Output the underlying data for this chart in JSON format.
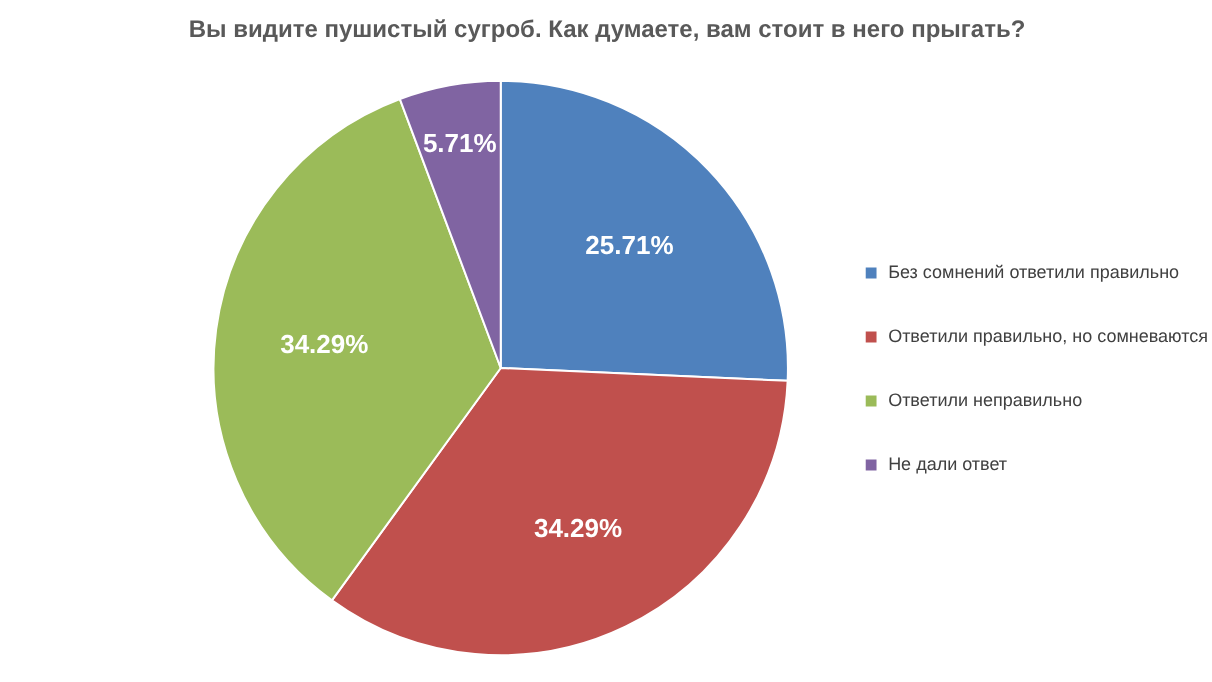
{
  "chart_data": {
    "type": "pie",
    "title": "Вы видите пушистый сугроб. Как думаете, вам стоит в него прыгать?",
    "categories": [
      "Без сомнений ответили правильно",
      "Ответили правильно, но сомневаются",
      "Ответили неправильно",
      "Не дали ответ"
    ],
    "values": [
      25.71,
      34.29,
      34.29,
      5.71
    ],
    "colors": [
      "#4f81bd",
      "#c0504d",
      "#9bbb59",
      "#8064a2"
    ],
    "value_labels": [
      "25.71%",
      "34.29%",
      "34.29%",
      "5.71%"
    ],
    "legend": "right"
  }
}
